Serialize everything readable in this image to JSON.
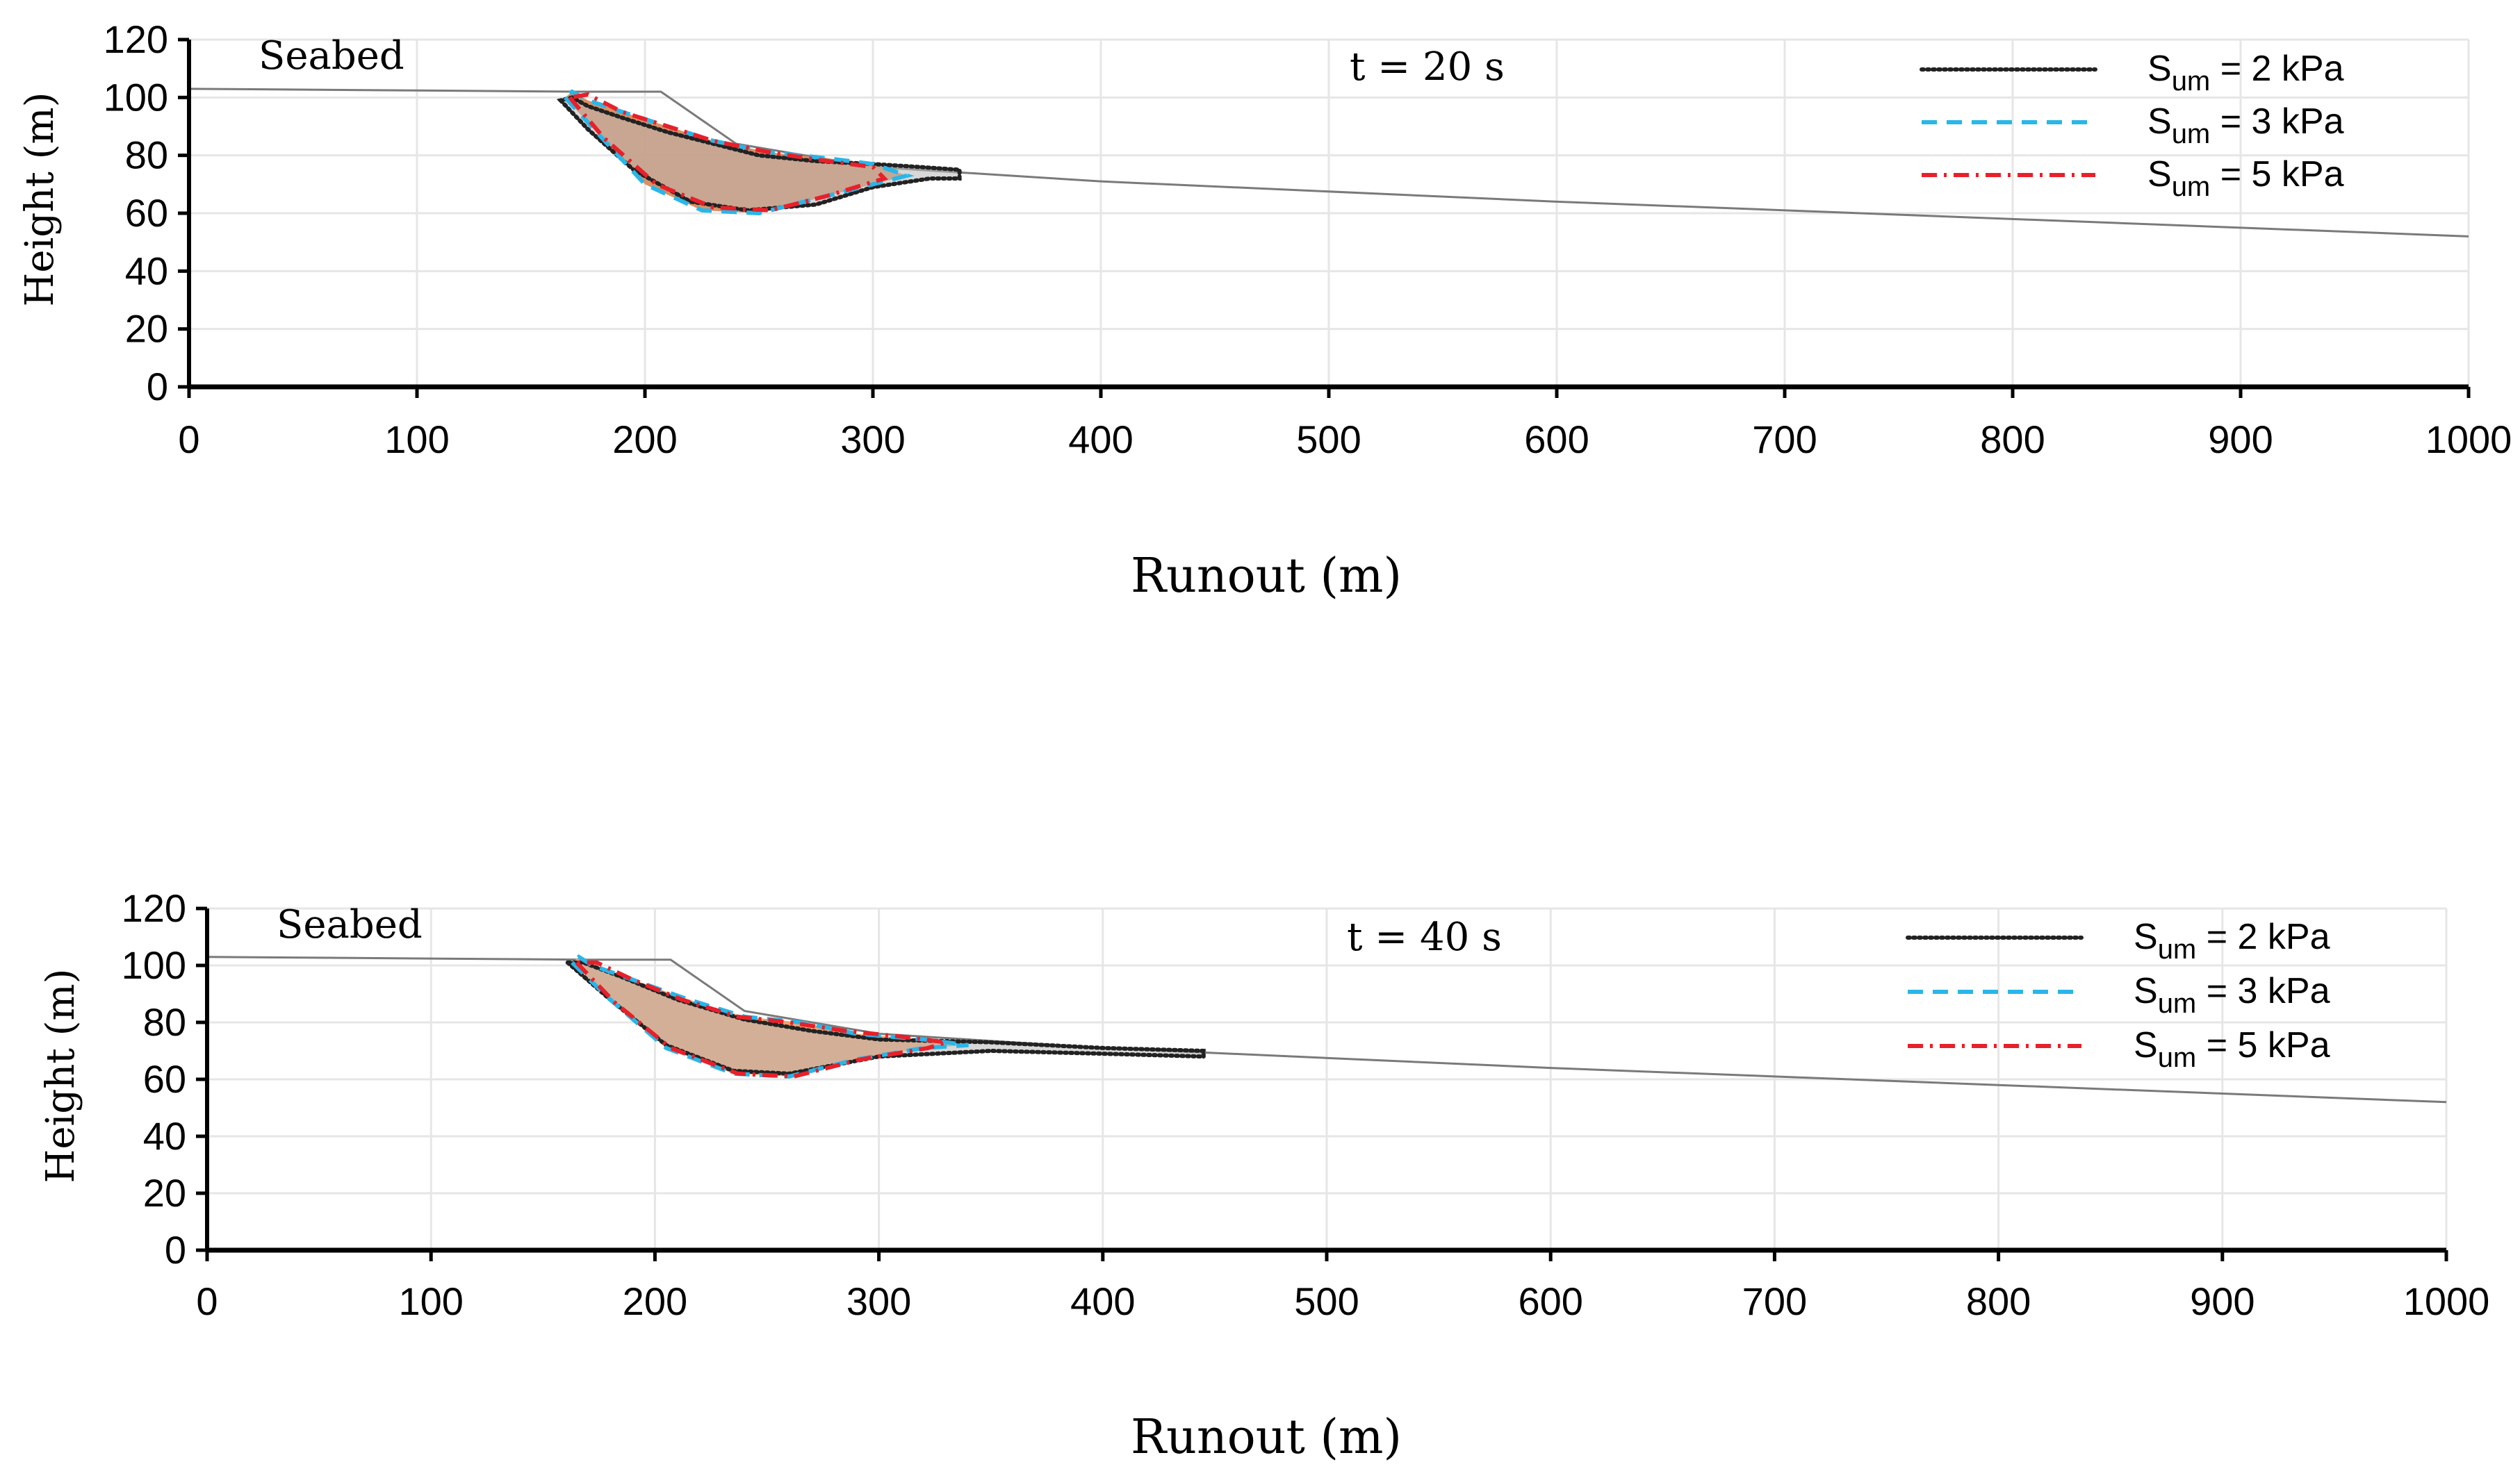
{
  "colors": {
    "axis": "#000000",
    "grid": "#e6e6e6",
    "seabed_line": "#7a7a7a",
    "fill_top": "#d98a5c",
    "fill_bottom": "#f2a068",
    "s2_color": "#222222",
    "s3_color": "#29b6e8",
    "s5_color": "#e8202a"
  },
  "chart_data": [
    {
      "type": "line",
      "time_label": "t  = 20 s",
      "seabed_label": "Seabed",
      "xlabel": "Runout  (m)",
      "ylabel": "Height  (m)",
      "xlim": [
        0,
        1000
      ],
      "ylim": [
        0,
        120
      ],
      "xticks": [
        "0",
        "100",
        "200",
        "300",
        "400",
        "500",
        "600",
        "700",
        "800",
        "900",
        "1000"
      ],
      "yticks": [
        "0",
        "20",
        "40",
        "60",
        "80",
        "100",
        "120"
      ],
      "seabed": {
        "x": [
          0,
          170,
          207,
          240,
          300,
          400,
          600,
          800,
          1000
        ],
        "y": [
          103,
          102,
          102,
          84,
          76,
          71,
          64,
          58,
          52
        ]
      },
      "series": [
        {
          "name": "2 kPa",
          "label_main": "S",
          "label_sub": "um",
          "label_rest": " = 2 kPa",
          "style": "dotted",
          "x": [
            163,
            175,
            195,
            220,
            245,
            275,
            300,
            325,
            338,
            338,
            320,
            300,
            275,
            250,
            230,
            210,
            190,
            175,
            168,
            163
          ],
          "y": [
            99,
            89,
            75,
            64,
            61,
            63,
            69,
            72,
            72,
            75,
            76,
            77,
            78,
            80,
            84,
            88,
            93,
            97,
            100,
            99
          ]
        },
        {
          "name": "3 kPa",
          "label_main": "S",
          "label_sub": "um",
          "label_rest": " = 3 kPa",
          "style": "dashed",
          "x": [
            165,
            180,
            200,
            225,
            250,
            275,
            300,
            315,
            300,
            280,
            255,
            230,
            210,
            190,
            175,
            168,
            165
          ],
          "y": [
            100,
            87,
            70,
            61,
            60,
            65,
            70,
            73,
            77,
            79,
            81,
            85,
            90,
            95,
            99,
            102,
            100
          ]
        },
        {
          "name": "5 kPa",
          "label_main": "S",
          "label_sub": "um",
          "label_rest": " = 5 kPa",
          "style": "dashdot",
          "x": [
            167,
            182,
            205,
            230,
            255,
            280,
            305,
            300,
            280,
            255,
            230,
            210,
            190,
            175,
            167
          ],
          "y": [
            100,
            86,
            70,
            62,
            61,
            66,
            72,
            76,
            78,
            81,
            85,
            90,
            95,
            101,
            100
          ]
        }
      ]
    },
    {
      "type": "line",
      "time_label": "t  = 40 s",
      "seabed_label": "Seabed",
      "xlabel": "Runout  (m)",
      "ylabel": "Height  (m)",
      "xlim": [
        0,
        1000
      ],
      "ylim": [
        0,
        120
      ],
      "xticks": [
        "0",
        "100",
        "200",
        "300",
        "400",
        "500",
        "600",
        "700",
        "800",
        "900",
        "1000"
      ],
      "yticks": [
        "0",
        "20",
        "40",
        "60",
        "80",
        "100",
        "120"
      ],
      "seabed": {
        "x": [
          0,
          170,
          207,
          240,
          300,
          400,
          600,
          800,
          1000
        ],
        "y": [
          103,
          102,
          102,
          84,
          76,
          71,
          64,
          58,
          52
        ]
      },
      "series": [
        {
          "name": "2 kPa",
          "label_main": "S",
          "label_sub": "um",
          "label_rest": " = 2 kPa",
          "style": "dotted",
          "x": [
            161,
            180,
            205,
            235,
            260,
            300,
            350,
            400,
            445,
            445,
            400,
            350,
            300,
            270,
            240,
            210,
            185,
            168,
            161
          ],
          "y": [
            101,
            88,
            72,
            63,
            62,
            68,
            70,
            69,
            68,
            70,
            71,
            73,
            74,
            77,
            81,
            88,
            96,
            101,
            101
          ]
        },
        {
          "name": "3 kPa",
          "label_main": "S",
          "label_sub": "um",
          "label_rest": " = 3 kPa",
          "style": "dashed",
          "x": [
            163,
            180,
            205,
            235,
            260,
            290,
            320,
            340,
            320,
            290,
            265,
            240,
            215,
            190,
            172,
            166,
            163
          ],
          "y": [
            101,
            88,
            71,
            62,
            61,
            67,
            71,
            72,
            74,
            76,
            80,
            82,
            88,
            95,
            100,
            103,
            101
          ]
        },
        {
          "name": "5 kPa",
          "label_main": "S",
          "label_sub": "um",
          "label_rest": " = 5 kPa",
          "style": "dashdot",
          "x": [
            165,
            182,
            207,
            237,
            262,
            292,
            322,
            330,
            310,
            285,
            260,
            237,
            212,
            190,
            174,
            165
          ],
          "y": [
            101,
            87,
            71,
            62,
            61,
            67,
            71,
            73,
            75,
            77,
            80,
            82,
            88,
            95,
            101,
            101
          ]
        }
      ]
    }
  ]
}
